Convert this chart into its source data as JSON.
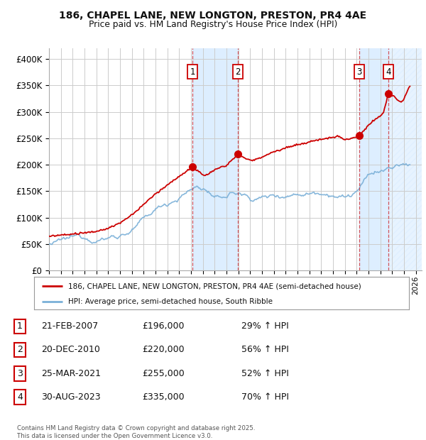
{
  "title_line1": "186, CHAPEL LANE, NEW LONGTON, PRESTON, PR4 4AE",
  "title_line2": "Price paid vs. HM Land Registry's House Price Index (HPI)",
  "xlim_start": 1995.0,
  "xlim_end": 2026.5,
  "ylim_min": 0,
  "ylim_max": 420000,
  "yticks": [
    0,
    50000,
    100000,
    150000,
    200000,
    250000,
    300000,
    350000,
    400000
  ],
  "ytick_labels": [
    "£0",
    "£50K",
    "£100K",
    "£150K",
    "£200K",
    "£250K",
    "£300K",
    "£350K",
    "£400K"
  ],
  "sale_dates": [
    2007.13,
    2010.97,
    2021.23,
    2023.66
  ],
  "sale_prices": [
    196000,
    220000,
    255000,
    335000
  ],
  "sale_labels": [
    "1",
    "2",
    "3",
    "4"
  ],
  "hpi_color": "#7ab0d8",
  "price_color": "#cc0000",
  "background_color": "#ffffff",
  "shading_color": "#ddeeff",
  "legend_text_red": "186, CHAPEL LANE, NEW LONGTON, PRESTON, PR4 4AE (semi-detached house)",
  "legend_text_blue": "HPI: Average price, semi-detached house, South Ribble",
  "table_data": [
    [
      "1",
      "21-FEB-2007",
      "£196,000",
      "29% ↑ HPI"
    ],
    [
      "2",
      "20-DEC-2010",
      "£220,000",
      "56% ↑ HPI"
    ],
    [
      "3",
      "25-MAR-2021",
      "£255,000",
      "52% ↑ HPI"
    ],
    [
      "4",
      "30-AUG-2023",
      "£335,000",
      "70% ↑ HPI"
    ]
  ],
  "footnote": "Contains HM Land Registry data © Crown copyright and database right 2025.\nThis data is licensed under the Open Government Licence v3.0.",
  "xtick_years": [
    1995,
    1996,
    1997,
    1998,
    1999,
    2000,
    2001,
    2002,
    2003,
    2004,
    2005,
    2006,
    2007,
    2008,
    2009,
    2010,
    2011,
    2012,
    2013,
    2014,
    2015,
    2016,
    2017,
    2018,
    2019,
    2020,
    2021,
    2022,
    2023,
    2024,
    2025,
    2026
  ]
}
